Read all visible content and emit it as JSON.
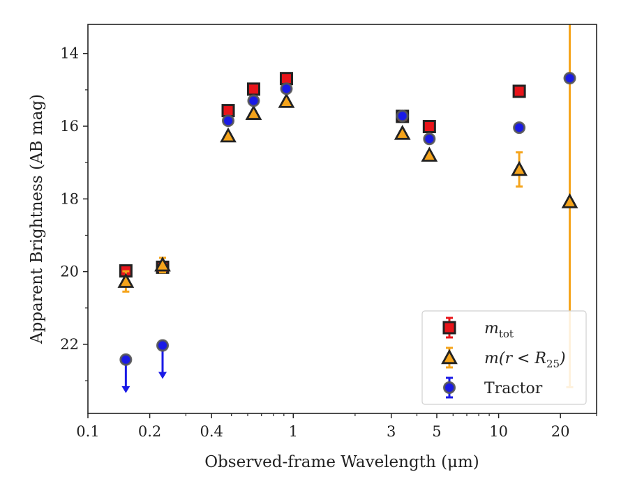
{
  "chart_data": {
    "type": "scatter",
    "title": "",
    "xlabel": "Observed-frame Wavelength (μm)",
    "ylabel": "Apparent Brightness (AB mag)",
    "xscale": "log",
    "xlim": [
      0.1,
      30
    ],
    "ylim": [
      23.9,
      13.2
    ],
    "y_inverted": true,
    "x_ticks": [
      {
        "value": 0.1,
        "label": "0.1"
      },
      {
        "value": 0.2,
        "label": "0.2"
      },
      {
        "value": 0.4,
        "label": "0.4"
      },
      {
        "value": 1,
        "label": "1"
      },
      {
        "value": 3,
        "label": "3"
      },
      {
        "value": 5,
        "label": "5"
      },
      {
        "value": 10,
        "label": "10"
      },
      {
        "value": 20,
        "label": "20"
      }
    ],
    "y_ticks": [
      {
        "value": 14,
        "label": "14"
      },
      {
        "value": 16,
        "label": "16"
      },
      {
        "value": 18,
        "label": "18"
      },
      {
        "value": 20,
        "label": "20"
      },
      {
        "value": 22,
        "label": "22"
      }
    ],
    "grid": false,
    "legend_position": "lower-right",
    "series": [
      {
        "name": "m_tot",
        "legend_main": "m",
        "legend_sub": "tot",
        "marker": "square",
        "color": "#e8141a",
        "points": [
          {
            "x": 0.153,
            "y": 19.98,
            "err": 0.07
          },
          {
            "x": 0.231,
            "y": 19.88,
            "err": 0.07
          },
          {
            "x": 0.482,
            "y": 15.57,
            "err": 0.03
          },
          {
            "x": 0.641,
            "y": 14.98,
            "err": 0.03
          },
          {
            "x": 0.926,
            "y": 14.69,
            "err": 0.03
          },
          {
            "x": 3.4,
            "y": 15.73,
            "err": 0.03
          },
          {
            "x": 4.6,
            "y": 16.01,
            "err": 0.03
          },
          {
            "x": 12.6,
            "y": 15.04,
            "err": 0.03
          }
        ]
      },
      {
        "name": "m(r < R25)",
        "legend_main": "m(r < R",
        "legend_sub": "25",
        "legend_close": ")",
        "marker": "triangle",
        "color": "#f5a41b",
        "points": [
          {
            "x": 0.153,
            "y": 20.27,
            "err": 0.28
          },
          {
            "x": 0.231,
            "y": 19.82,
            "err": 0.2
          },
          {
            "x": 0.482,
            "y": 16.27,
            "err": 0.03
          },
          {
            "x": 0.641,
            "y": 15.65,
            "err": 0.03
          },
          {
            "x": 0.926,
            "y": 15.32,
            "err": 0.03
          },
          {
            "x": 3.4,
            "y": 16.2,
            "err": 0.03
          },
          {
            "x": 4.6,
            "y": 16.8,
            "err": 0.03
          },
          {
            "x": 12.6,
            "y": 17.19,
            "err": 0.47
          },
          {
            "x": 22.2,
            "y": 18.08,
            "err": 5.1
          }
        ]
      },
      {
        "name": "Tractor",
        "marker": "circle",
        "color": "#1a1ae6",
        "points": [
          {
            "x": 0.153,
            "y": 22.42,
            "upper_limit": true
          },
          {
            "x": 0.231,
            "y": 22.03,
            "upper_limit": true
          },
          {
            "x": 0.482,
            "y": 15.85,
            "err": 0.02
          },
          {
            "x": 0.641,
            "y": 15.3,
            "err": 0.02
          },
          {
            "x": 0.926,
            "y": 14.97,
            "err": 0.02
          },
          {
            "x": 3.4,
            "y": 15.72,
            "err": 0.02
          },
          {
            "x": 4.6,
            "y": 16.35,
            "err": 0.02
          },
          {
            "x": 12.6,
            "y": 16.04,
            "err": 0.02
          },
          {
            "x": 22.2,
            "y": 14.68,
            "err": 0.02
          }
        ]
      }
    ]
  }
}
